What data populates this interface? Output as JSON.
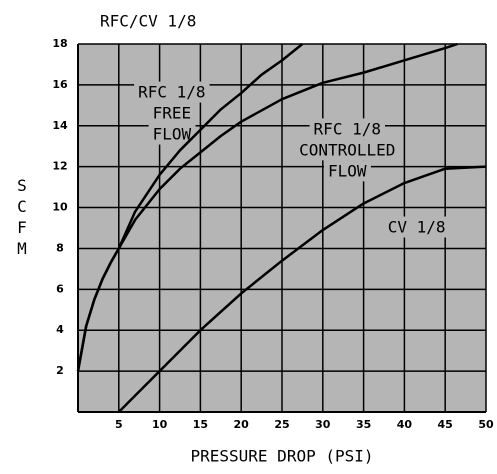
{
  "chart_data": {
    "type": "line",
    "title": "RFC/CV 1/8",
    "x_label": "PRESSURE DROP (PSI)",
    "y_label": "SCFM",
    "xlim": [
      0,
      50
    ],
    "ylim": [
      0,
      18
    ],
    "xticks": [
      5,
      10,
      15,
      20,
      25,
      30,
      35,
      40,
      45,
      50
    ],
    "yticks": [
      2,
      4,
      6,
      8,
      10,
      12,
      14,
      16,
      18
    ],
    "grid": true,
    "background": "#b5b5b5",
    "annotations": [
      {
        "lines": [
          "RFC 1/8",
          "FREE",
          "FLOW"
        ],
        "x": 11.5,
        "y": 15.6
      },
      {
        "lines": [
          "RFC 1/8",
          "CONTROLLED",
          "FLOW"
        ],
        "x": 33,
        "y": 13.8
      },
      {
        "lines": [
          "CV 1/8"
        ],
        "x": 41.5,
        "y": 9
      }
    ],
    "series": [
      {
        "name": "RFC 1/8 FREE FLOW",
        "color": "#000000",
        "x": [
          0,
          1,
          2,
          3,
          4,
          5,
          7,
          10,
          12.5,
          15,
          17.5,
          20,
          22.5,
          25,
          27.5
        ],
        "values": [
          2,
          4.2,
          5.5,
          6.5,
          7.3,
          8,
          9.8,
          11.6,
          12.8,
          13.8,
          14.8,
          15.6,
          16.5,
          17.2,
          18
        ]
      },
      {
        "name": "RFC 1/8 CONTROLLED FLOW",
        "color": "#000000",
        "x": [
          0,
          1,
          2,
          3,
          4,
          5,
          7,
          10,
          12.5,
          15,
          17.5,
          20,
          25,
          30,
          35,
          40,
          45,
          46.5
        ],
        "values": [
          2,
          4.2,
          5.5,
          6.5,
          7.3,
          8,
          9.4,
          10.9,
          11.9,
          12.7,
          13.5,
          14.2,
          15.3,
          16.1,
          16.6,
          17.2,
          17.8,
          18
        ]
      },
      {
        "name": "CV 1/8",
        "color": "#000000",
        "x": [
          5,
          10,
          15,
          20,
          25,
          30,
          35,
          40,
          45,
          50
        ],
        "values": [
          0,
          2,
          4,
          5.8,
          7.4,
          8.9,
          10.2,
          11.2,
          11.9,
          12
        ]
      }
    ]
  }
}
